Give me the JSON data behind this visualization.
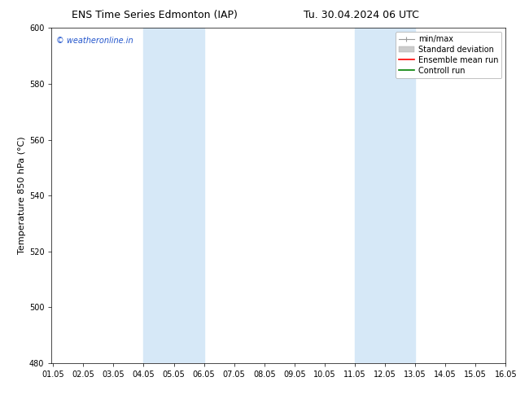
{
  "title_left": "ENS Time Series Edmonton (IAP)",
  "title_right": "Tu. 30.04.2024 06 UTC",
  "ylabel": "Temperature 850 hPa (°C)",
  "xlim": [
    1.0,
    16.05
  ],
  "ylim": [
    480,
    600
  ],
  "yticks": [
    480,
    500,
    520,
    540,
    560,
    580,
    600
  ],
  "xtick_labels": [
    "01.05",
    "02.05",
    "03.05",
    "04.05",
    "05.05",
    "06.05",
    "07.05",
    "08.05",
    "09.05",
    "10.05",
    "11.05",
    "12.05",
    "13.05",
    "14.05",
    "15.05",
    "16.05"
  ],
  "xtick_positions": [
    1.05,
    2.05,
    3.05,
    4.05,
    5.05,
    6.05,
    7.05,
    8.05,
    9.05,
    10.05,
    11.05,
    12.05,
    13.05,
    14.05,
    15.05,
    16.05
  ],
  "shaded_bands": [
    {
      "x_start": 4.05,
      "x_end": 6.05
    },
    {
      "x_start": 11.05,
      "x_end": 13.05
    }
  ],
  "shaded_color": "#d6e8f7",
  "watermark_text": "© weatheronline.in",
  "watermark_color": "#2255cc",
  "legend_entries": [
    {
      "label": "min/max",
      "color": "#999999",
      "lw": 1.0
    },
    {
      "label": "Standard deviation",
      "color": "#cccccc",
      "lw": 6
    },
    {
      "label": "Ensemble mean run",
      "color": "red",
      "lw": 1.2
    },
    {
      "label": "Controll run",
      "color": "green",
      "lw": 1.2
    }
  ],
  "bg_color": "#ffffff",
  "title_fontsize": 9,
  "tick_fontsize": 7,
  "ylabel_fontsize": 8,
  "legend_fontsize": 7,
  "watermark_fontsize": 7
}
